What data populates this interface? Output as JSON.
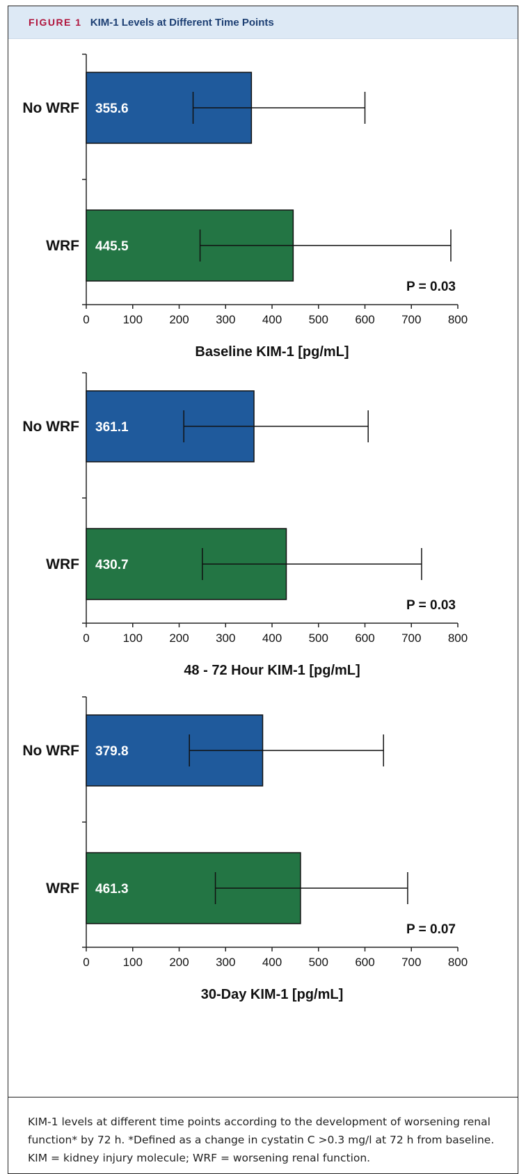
{
  "header": {
    "figure_label": "FIGURE 1",
    "title": "KIM-1 Levels at Different Time Points"
  },
  "colors": {
    "no_wrf": "#1f5a9c",
    "wrf": "#237544",
    "axis": "#222222"
  },
  "chart_data": [
    {
      "type": "bar",
      "orientation": "horizontal",
      "categories": [
        "No WRF",
        "WRF"
      ],
      "values": [
        355.6,
        445.5
      ],
      "value_labels": [
        "355.6",
        "445.5"
      ],
      "error_low": [
        230,
        245
      ],
      "error_high": [
        600,
        785
      ],
      "xlabel": "Baseline KIM-1 [pg/mL]",
      "xlim": [
        0,
        800
      ],
      "xticks": [
        "0",
        "100",
        "200",
        "300",
        "400",
        "500",
        "600",
        "700",
        "800"
      ],
      "p_value": "P = 0.03",
      "grid": false
    },
    {
      "type": "bar",
      "orientation": "horizontal",
      "categories": [
        "No WRF",
        "WRF"
      ],
      "values": [
        361.1,
        430.7
      ],
      "value_labels": [
        "361.1",
        "430.7"
      ],
      "error_low": [
        210,
        250
      ],
      "error_high": [
        607,
        722
      ],
      "xlabel": "48 - 72 Hour KIM-1 [pg/mL]",
      "xlim": [
        0,
        800
      ],
      "xticks": [
        "0",
        "100",
        "200",
        "300",
        "400",
        "500",
        "600",
        "700",
        "800"
      ],
      "p_value": "P = 0.03",
      "grid": false
    },
    {
      "type": "bar",
      "orientation": "horizontal",
      "categories": [
        "No WRF",
        "WRF"
      ],
      "values": [
        379.8,
        461.3
      ],
      "value_labels": [
        "379.8",
        "461.3"
      ],
      "error_low": [
        222,
        278
      ],
      "error_high": [
        640,
        692
      ],
      "xlabel": "30-Day KIM-1 [pg/mL]",
      "xlim": [
        0,
        800
      ],
      "xticks": [
        "0",
        "100",
        "200",
        "300",
        "400",
        "500",
        "600",
        "700",
        "800"
      ],
      "p_value": "P = 0.07",
      "grid": false
    }
  ],
  "caption": "KIM-1 levels at different time points according to the development of worsening renal function* by 72 h. *Defined as a change in cystatin C >0.3 mg/l at 72 h from baseline. KIM = kidney injury molecule; WRF = worsening renal function."
}
